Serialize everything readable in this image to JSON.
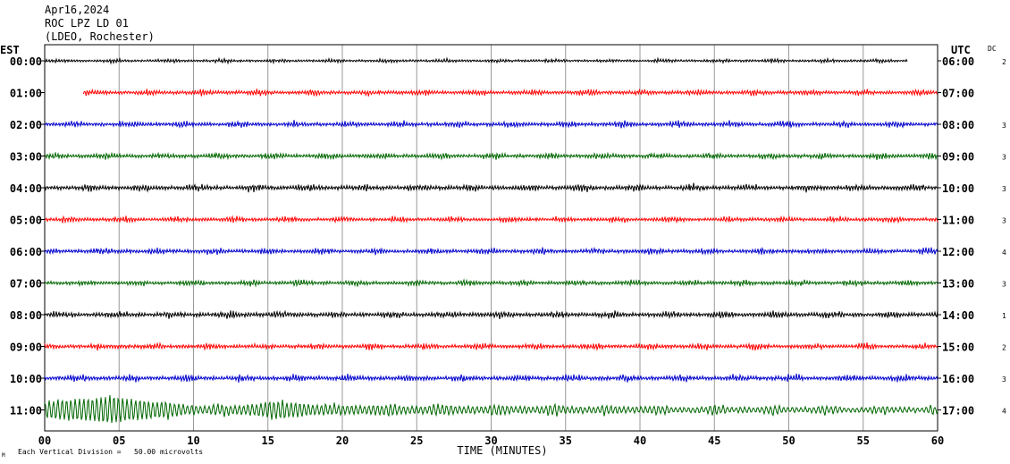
{
  "header": {
    "date": "Apr16,2024",
    "station": "ROC LPZ LD 01",
    "network": "(LDEO, Rochester)"
  },
  "chart_data": {
    "type": "line",
    "title": "",
    "xlabel": "TIME (MINUTES)",
    "xlim": [
      0,
      60
    ],
    "x_ticks": [
      "00",
      "05",
      "10",
      "15",
      "20",
      "25",
      "30",
      "35",
      "40",
      "45",
      "50",
      "55",
      "60"
    ],
    "left_axis_label": "EST",
    "right_axis_label": "UTC",
    "dc_label": "DC",
    "scale_note": "Each Vertical Division =   50.00 microvolts",
    "scale_note_prefix": "M",
    "grid": true,
    "series": [
      {
        "est": "00:00",
        "utc": "06:00",
        "dc": "2",
        "color": "#000000",
        "start_min": 0,
        "end_min": 58,
        "amp": 1.0
      },
      {
        "est": "01:00",
        "utc": "07:00",
        "dc": "",
        "color": "#ff0000",
        "start_min": 2.6,
        "end_min": 60,
        "amp": 1.5
      },
      {
        "est": "02:00",
        "utc": "08:00",
        "dc": "3",
        "color": "#0000cc",
        "start_min": 0,
        "end_min": 60,
        "amp": 1.6
      },
      {
        "est": "03:00",
        "utc": "09:00",
        "dc": "3",
        "color": "#006600",
        "start_min": 0,
        "end_min": 60,
        "amp": 1.6
      },
      {
        "est": "04:00",
        "utc": "10:00",
        "dc": "3",
        "color": "#000000",
        "start_min": 0,
        "end_min": 60,
        "amp": 1.8
      },
      {
        "est": "05:00",
        "utc": "11:00",
        "dc": "3",
        "color": "#ff0000",
        "start_min": 0,
        "end_min": 60,
        "amp": 1.5
      },
      {
        "est": "06:00",
        "utc": "12:00",
        "dc": "4",
        "color": "#0000cc",
        "start_min": 0,
        "end_min": 60,
        "amp": 1.6
      },
      {
        "est": "07:00",
        "utc": "13:00",
        "dc": "3",
        "color": "#006600",
        "start_min": 0,
        "end_min": 60,
        "amp": 1.5
      },
      {
        "est": "08:00",
        "utc": "14:00",
        "dc": "1",
        "color": "#000000",
        "start_min": 0,
        "end_min": 60,
        "amp": 1.8
      },
      {
        "est": "09:00",
        "utc": "15:00",
        "dc": "2",
        "color": "#ff0000",
        "start_min": 0,
        "end_min": 60,
        "amp": 1.6
      },
      {
        "est": "10:00",
        "utc": "16:00",
        "dc": "3",
        "color": "#0000cc",
        "start_min": 0,
        "end_min": 60,
        "amp": 1.8
      },
      {
        "est": "11:00",
        "utc": "17:00",
        "dc": "4",
        "color": "#006600",
        "start_min": 0,
        "end_min": 60,
        "amp": 2.2
      }
    ]
  }
}
